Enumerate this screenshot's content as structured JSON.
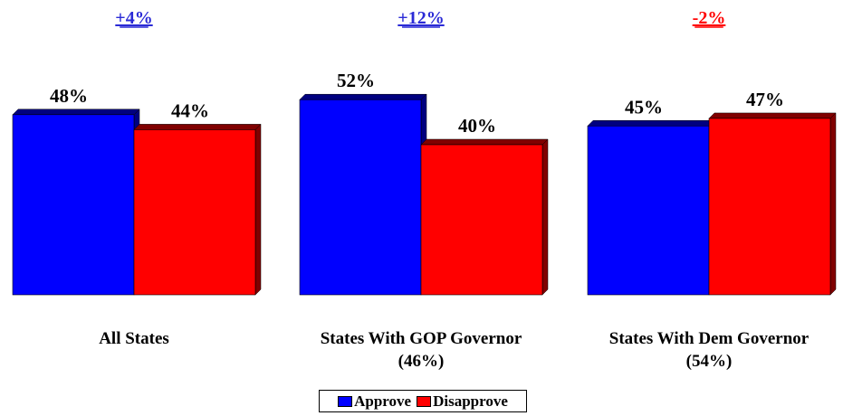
{
  "chart_data": {
    "type": "bar",
    "categories": [
      [
        "All States"
      ],
      [
        "States With GOP Governor",
        "(46%)"
      ],
      [
        "States With Dem Governor",
        "(54%)"
      ]
    ],
    "series": [
      {
        "name": "Approve",
        "values": [
          48,
          52,
          45
        ],
        "labels": [
          "48%",
          "52%",
          "45%"
        ]
      },
      {
        "name": "Disapprove",
        "values": [
          44,
          40,
          47
        ],
        "labels": [
          "44%",
          "40%",
          "47%"
        ]
      }
    ],
    "differences": [
      "+4%",
      "+12%",
      "-2%"
    ],
    "ylim": [
      0,
      52
    ],
    "legend_position": "bottom-center",
    "grid": false
  },
  "colors": {
    "approve": "#0000ff",
    "approve_side": "#000080",
    "disapprove": "#ff0000",
    "disapprove_side": "#800000",
    "diff_positive": "#2a2ad6",
    "diff_negative": "#ff0000"
  }
}
